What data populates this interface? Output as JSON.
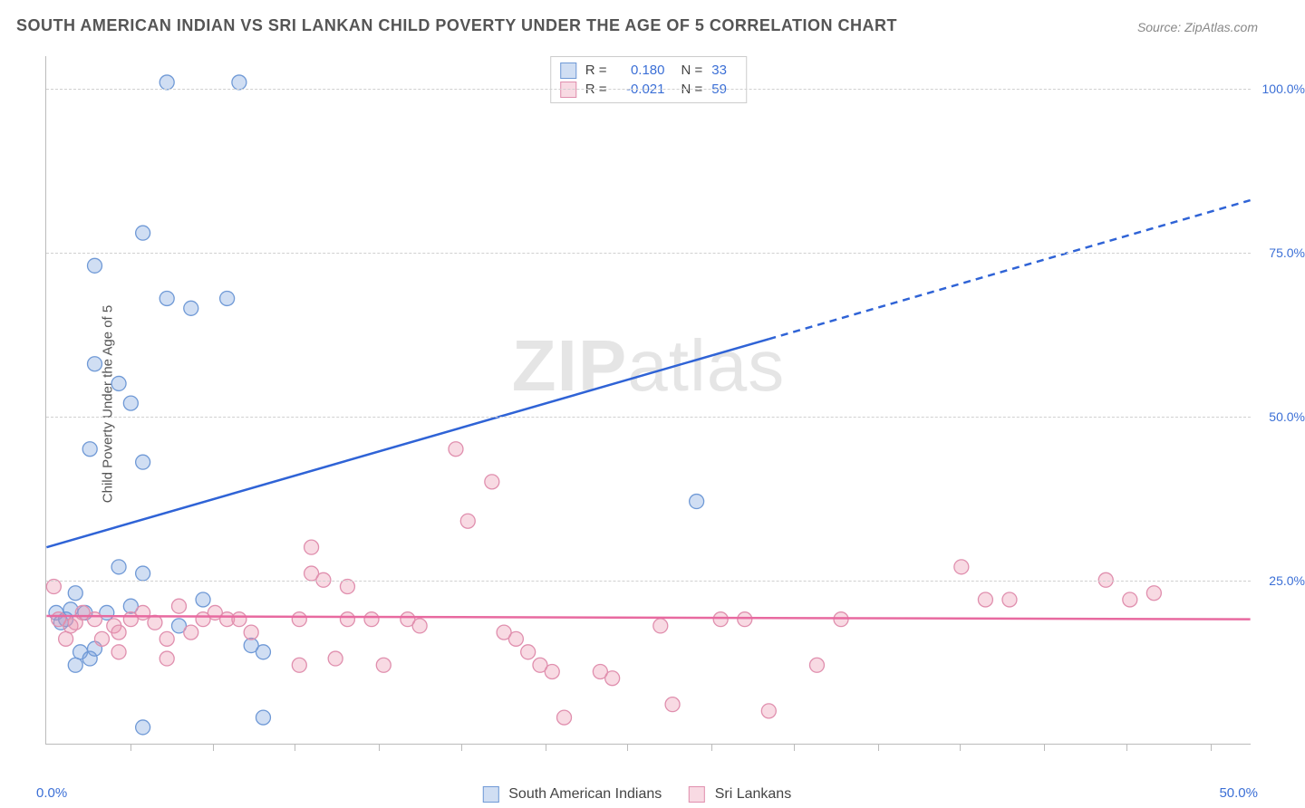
{
  "chart": {
    "type": "scatter",
    "title": "SOUTH AMERICAN INDIAN VS SRI LANKAN CHILD POVERTY UNDER THE AGE OF 5 CORRELATION CHART",
    "source_label": "Source: ZipAtlas.com",
    "ylabel": "Child Poverty Under the Age of 5",
    "watermark": "ZIPatlas",
    "background_color": "#ffffff",
    "grid_color": "#d0d0d0",
    "axis_color": "#bbbbbb",
    "title_color": "#555555",
    "label_color": "#555555",
    "tick_label_color": "#3b6fd6",
    "title_fontsize": 18,
    "label_fontsize": 15,
    "tick_fontsize": 14,
    "xlim": [
      0,
      50
    ],
    "ylim": [
      0,
      105
    ],
    "y_gridlines": [
      25,
      50,
      75,
      100
    ],
    "y_tick_labels": [
      "25.0%",
      "50.0%",
      "75.0%",
      "100.0%"
    ],
    "x_axis_start_label": "0.0%",
    "x_axis_end_label": "50.0%",
    "x_ticks": [
      3.5,
      6.9,
      10.3,
      13.8,
      17.2,
      20.7,
      24.1,
      27.6,
      31.0,
      34.5,
      37.9,
      41.4,
      44.8,
      48.3
    ],
    "series": [
      {
        "name": "South American Indians",
        "color_fill": "rgba(120,160,220,0.35)",
        "color_stroke": "#6f99d6",
        "marker_radius": 8,
        "R": "0.180",
        "N": "33",
        "trend": {
          "color": "#2f63d6",
          "width": 2.5,
          "solid_to_x": 30,
          "y_at_x0": 30,
          "y_at_xmax": 83
        },
        "points": [
          [
            0.4,
            20
          ],
          [
            0.6,
            18.5
          ],
          [
            0.8,
            19
          ],
          [
            1.0,
            20.5
          ],
          [
            1.2,
            23
          ],
          [
            1.4,
            14
          ],
          [
            1.6,
            20
          ],
          [
            1.8,
            13
          ],
          [
            2.0,
            14.5
          ],
          [
            2.5,
            20
          ],
          [
            3.0,
            27
          ],
          [
            3.5,
            21
          ],
          [
            5.0,
            101
          ],
          [
            8.0,
            101
          ],
          [
            4.0,
            78
          ],
          [
            2.0,
            73
          ],
          [
            5.0,
            68
          ],
          [
            6.0,
            66.5
          ],
          [
            7.5,
            68
          ],
          [
            2.0,
            58
          ],
          [
            3.0,
            55
          ],
          [
            1.8,
            45
          ],
          [
            4.0,
            43
          ],
          [
            3.5,
            52
          ],
          [
            4.0,
            26
          ],
          [
            5.5,
            18
          ],
          [
            6.5,
            22
          ],
          [
            8.5,
            15
          ],
          [
            9.0,
            14
          ],
          [
            4.0,
            2.5
          ],
          [
            9.0,
            4
          ],
          [
            27.0,
            37
          ],
          [
            1.2,
            12
          ]
        ]
      },
      {
        "name": "Sri Lankans",
        "color_fill": "rgba(235,150,175,0.35)",
        "color_stroke": "#e08fae",
        "marker_radius": 8,
        "R": "-0.021",
        "N": "59",
        "trend": {
          "color": "#e86aa0",
          "width": 2.5,
          "solid_to_x": 50,
          "y_at_x0": 19.5,
          "y_at_xmax": 19
        },
        "points": [
          [
            0.3,
            24
          ],
          [
            0.5,
            19
          ],
          [
            0.8,
            16
          ],
          [
            1.0,
            18
          ],
          [
            1.2,
            18.5
          ],
          [
            1.5,
            20
          ],
          [
            2.0,
            19
          ],
          [
            2.3,
            16
          ],
          [
            2.8,
            18
          ],
          [
            3.0,
            17
          ],
          [
            3.5,
            19
          ],
          [
            4.0,
            20
          ],
          [
            4.5,
            18.5
          ],
          [
            5.0,
            16
          ],
          [
            5.0,
            13
          ],
          [
            5.5,
            21
          ],
          [
            6.0,
            17
          ],
          [
            6.5,
            19
          ],
          [
            7.0,
            20
          ],
          [
            7.5,
            19
          ],
          [
            8.0,
            19
          ],
          [
            8.5,
            17
          ],
          [
            11.0,
            26
          ],
          [
            11.0,
            30
          ],
          [
            11.5,
            25
          ],
          [
            10.5,
            19
          ],
          [
            10.5,
            12
          ],
          [
            12.5,
            19
          ],
          [
            12.5,
            24
          ],
          [
            13.5,
            19
          ],
          [
            12.0,
            13
          ],
          [
            14.0,
            12
          ],
          [
            15.0,
            19
          ],
          [
            15.5,
            18
          ],
          [
            17.0,
            45
          ],
          [
            18.5,
            40
          ],
          [
            17.5,
            34
          ],
          [
            19.0,
            17
          ],
          [
            19.5,
            16
          ],
          [
            20.0,
            14
          ],
          [
            20.5,
            12
          ],
          [
            21.0,
            11
          ],
          [
            21.5,
            4
          ],
          [
            23.0,
            11
          ],
          [
            23.5,
            10
          ],
          [
            25.5,
            18
          ],
          [
            26.0,
            6
          ],
          [
            28.0,
            19
          ],
          [
            29.0,
            19
          ],
          [
            30.0,
            5
          ],
          [
            32.0,
            12
          ],
          [
            33.0,
            19
          ],
          [
            38.0,
            27
          ],
          [
            39.0,
            22
          ],
          [
            40.0,
            22
          ],
          [
            44.0,
            25
          ],
          [
            45.0,
            22
          ],
          [
            46.0,
            23
          ],
          [
            3.0,
            14
          ]
        ]
      }
    ],
    "legend_top_swatch_colors": [
      "#6f99d6",
      "#e08fae"
    ],
    "legend_top_swatch_fill": [
      "rgba(120,160,220,0.35)",
      "rgba(235,150,175,0.35)"
    ],
    "legend_R_label": "R =",
    "legend_N_label": "N ="
  }
}
